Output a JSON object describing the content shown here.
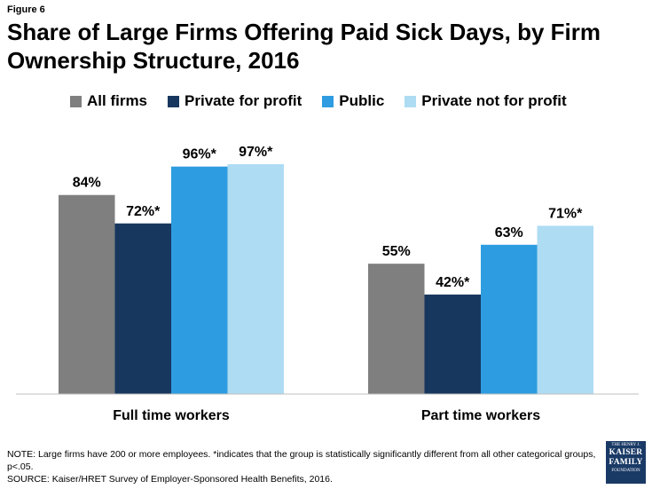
{
  "figure_label": "Figure 6",
  "chart_data": {
    "type": "bar",
    "title": "Share of Large Firms Offering Paid Sick Days, by Firm Ownership Structure, 2016",
    "categories": [
      "Full time workers",
      "Part time workers"
    ],
    "series": [
      {
        "name": "All firms",
        "color": "#7f7f7f",
        "values": [
          84,
          55
        ],
        "labels": [
          "84%",
          "55%"
        ]
      },
      {
        "name": "Private for profit",
        "color": "#17375e",
        "values": [
          72,
          42
        ],
        "labels": [
          "72%*",
          "42%*"
        ]
      },
      {
        "name": "Public",
        "color": "#2e9ce0",
        "values": [
          96,
          63
        ],
        "labels": [
          "96%*",
          "63%"
        ]
      },
      {
        "name": "Private not for profit",
        "color": "#aedcf3",
        "values": [
          97,
          71
        ],
        "labels": [
          "97%*",
          "71%*"
        ]
      }
    ],
    "ylim": [
      0,
      100
    ],
    "legend_position": "top",
    "grid": false
  },
  "footnote": {
    "note": "NOTE: Large firms have 200 or more employees. *indicates that the group is statistically significantly different from all other categorical groups, p<.05.",
    "source": "SOURCE: Kaiser/HRET Survey of Employer-Sponsored Health Benefits, 2016."
  },
  "logo": {
    "line1": "THE HENRY J.",
    "line2": "KAISER",
    "line3": "FAMILY",
    "line4": "FOUNDATION"
  }
}
